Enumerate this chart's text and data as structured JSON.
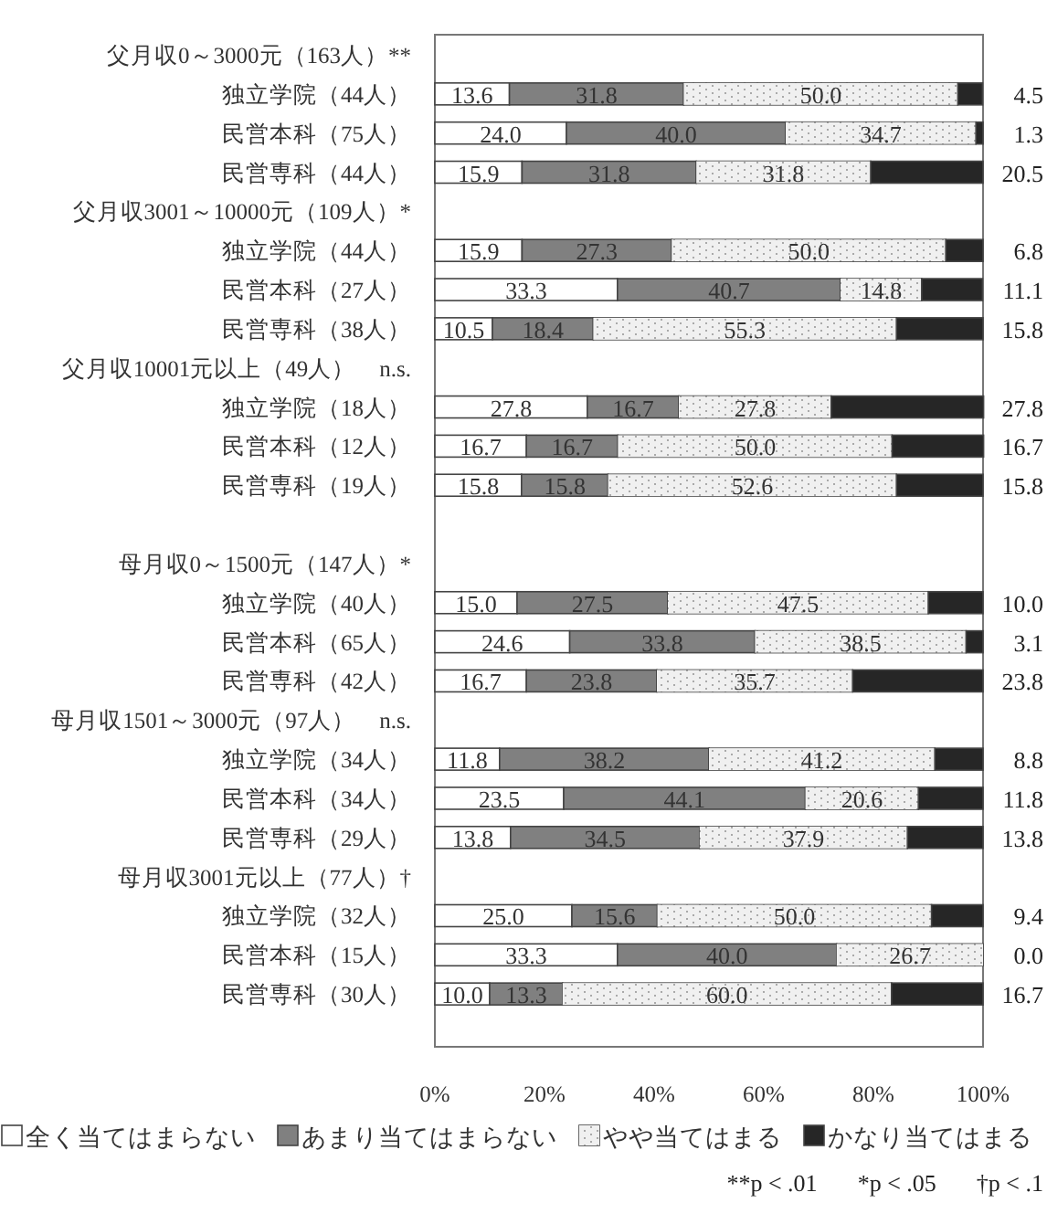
{
  "chart_data": {
    "type": "bar",
    "orientation": "horizontal",
    "stacked": true,
    "legend": "bottom",
    "grid": false,
    "categories": [
      "父月収0～3000元（163人）**",
      "独立学院（44人）",
      "民営本科（75人）",
      "民営専科（44人）",
      "父月収3001～10000元（109人）*",
      "独立学院（44人）",
      "民営本科（27人）",
      "民営専科（38人）",
      "父月収10001元以上（49人）　n.s.",
      "独立学院（18人）",
      "民営本科（12人）",
      "民営専科（19人）",
      null,
      "母月収0～1500元（147人）*",
      "独立学院（40人）",
      "民営本科（65人）",
      "民営専科（42人）",
      "母月収1501～3000元（97人）　n.s.",
      "独立学院（34人）",
      "民営本科（34人）",
      "民営専科（29人）",
      "母月収3001元以上（77人）†",
      "独立学院（32人）",
      "民営本科（15人）",
      "民営専科（30人）"
    ],
    "xlim": [
      0,
      100
    ],
    "xticks": [
      {
        "value": 0,
        "label": "0%"
      },
      {
        "value": 20,
        "label": "20%"
      },
      {
        "value": 40,
        "label": "40%"
      },
      {
        "value": 60,
        "label": "60%"
      },
      {
        "value": 80,
        "label": "80%"
      },
      {
        "value": 100,
        "label": "100%"
      }
    ],
    "series": [
      {
        "name": "全く当てはまらない",
        "color": "#ffffff",
        "values": [
          null,
          13.6,
          24.0,
          15.9,
          null,
          15.9,
          33.3,
          10.5,
          null,
          27.8,
          16.7,
          15.8,
          null,
          null,
          15.0,
          24.6,
          16.7,
          null,
          11.8,
          23.5,
          13.8,
          null,
          25.0,
          33.3,
          10.0
        ],
        "value_labels": [
          null,
          "13.6",
          "24.0",
          "15.9",
          null,
          "15.9",
          "33.3",
          "10.5",
          null,
          "27.8",
          "16.7",
          "15.8",
          null,
          null,
          "15.0",
          "24.6",
          "16.7",
          null,
          "11.8",
          "23.5",
          "13.8",
          null,
          "25.0",
          "33.3",
          "10.0"
        ]
      },
      {
        "name": "あまり当てはまらない",
        "color": "#808080",
        "values": [
          null,
          31.8,
          40.0,
          31.8,
          null,
          27.3,
          40.7,
          18.4,
          null,
          16.7,
          16.7,
          15.8,
          null,
          null,
          27.5,
          33.8,
          23.8,
          null,
          38.2,
          44.1,
          34.5,
          null,
          15.6,
          40.0,
          13.3
        ],
        "value_labels": [
          null,
          "31.8",
          "40.0",
          "31.8",
          null,
          "27.3",
          "40.7",
          "18.4",
          null,
          "16.7",
          "16.7",
          "15.8",
          null,
          null,
          "27.5",
          "33.8",
          "23.8",
          null,
          "38.2",
          "44.1",
          "34.5",
          null,
          "15.6",
          "40.0",
          "13.3"
        ]
      },
      {
        "name": "やや当てはまる",
        "color": "#f0f0f0",
        "values": [
          null,
          50.0,
          34.7,
          31.8,
          null,
          50.0,
          14.8,
          55.3,
          null,
          27.8,
          50.0,
          52.6,
          null,
          null,
          47.5,
          38.5,
          35.7,
          null,
          41.2,
          20.6,
          37.9,
          null,
          50.0,
          26.7,
          60.0
        ],
        "value_labels": [
          null,
          "50.0",
          "34.7",
          "31.8",
          null,
          "50.0",
          "14.8",
          "55.3",
          null,
          "27.8",
          "50.0",
          "52.6",
          null,
          null,
          "47.5",
          "38.5",
          "35.7",
          null,
          "41.2",
          "20.6",
          "37.9",
          null,
          "50.0",
          "26.7",
          "60.0"
        ]
      },
      {
        "name": "かなり当てはまる",
        "color": "#262626",
        "values": [
          null,
          4.5,
          1.3,
          20.5,
          null,
          6.8,
          11.1,
          15.8,
          null,
          27.8,
          16.7,
          15.8,
          null,
          null,
          10.0,
          3.1,
          23.8,
          null,
          8.8,
          11.8,
          13.8,
          null,
          9.4,
          0.0,
          16.7
        ],
        "value_labels": [
          null,
          "4.5",
          "1.3",
          "20.5",
          null,
          "6.8",
          "11.1",
          "15.8",
          null,
          "27.8",
          "16.7",
          "15.8",
          null,
          null,
          "10.0",
          "3.1",
          "23.8",
          null,
          "8.8",
          "11.8",
          "13.8",
          null,
          "9.4",
          "0.0",
          "16.7"
        ]
      }
    ],
    "annotations": [
      "**p < .01",
      "*p < .05",
      "†p < .1"
    ]
  }
}
